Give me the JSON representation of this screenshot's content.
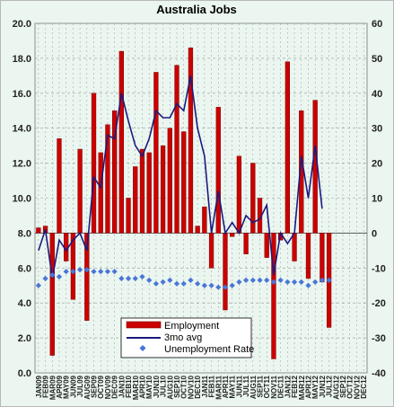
{
  "chart_data": {
    "type": "bar",
    "title": "Australia Jobs",
    "categories": [
      "JAN09",
      "FEB09",
      "MAR09",
      "APR09",
      "MAY09",
      "JUN09",
      "JUL09",
      "AUG09",
      "SEP09",
      "OCT09",
      "NOV09",
      "DEC09",
      "JAN10",
      "FEB10",
      "MAR10",
      "APR10",
      "MAY10",
      "JUN10",
      "JUL10",
      "AUG10",
      "SEP10",
      "OCT10",
      "NOV10",
      "DEC10",
      "JAN11",
      "FEB11",
      "MAR11",
      "APR11",
      "MAY11",
      "JUN11",
      "JUL11",
      "AUG11",
      "SEP11",
      "OCT11",
      "NOV11",
      "DEC11",
      "JAN12",
      "FEB12",
      "MAR12",
      "APR12",
      "MAY12",
      "JUN12",
      "JUL12",
      "AUG12",
      "SEP12",
      "OCT12",
      "NOV12",
      "DEC12"
    ],
    "left_axis": {
      "ylim": [
        0,
        20
      ],
      "ticks": [
        "0.0",
        "2.0",
        "4.0",
        "6.0",
        "8.0",
        "10.0",
        "12.0",
        "14.0",
        "16.0",
        "18.0",
        "20.0"
      ]
    },
    "right_axis": {
      "ylim": [
        -40,
        60
      ],
      "ticks": [
        "-40",
        "-30",
        "-20",
        "-10",
        "0",
        "10",
        "20",
        "30",
        "40",
        "50",
        "60"
      ]
    },
    "grid": true,
    "legend_position": "bottom-center",
    "colors": {
      "bar": "#cc0000",
      "bar_edge": "#7a0000",
      "line": "#1a1a80",
      "marker": "#4a76d8",
      "background": "#eaf6ef",
      "grid": "#999999"
    },
    "series": [
      {
        "name": "Employment",
        "axis": "right",
        "kind": "bar",
        "values": [
          1.5,
          2.0,
          -35,
          27,
          -8,
          -19,
          24,
          -25,
          40,
          23,
          31,
          35,
          52,
          10,
          19,
          24,
          23,
          46,
          25,
          30,
          48,
          29,
          53,
          2,
          7.5,
          -10,
          36,
          -22,
          -1,
          22,
          -6,
          20,
          10,
          -7,
          -36,
          -2,
          49,
          -8,
          35,
          -13,
          38,
          -14,
          -27,
          null,
          null,
          null,
          null,
          null
        ]
      },
      {
        "name": "3mo avg",
        "axis": "right",
        "kind": "line",
        "values": [
          -5,
          1,
          -13,
          -2,
          -5,
          -2,
          0,
          -5,
          16,
          13,
          28,
          27,
          40,
          32,
          25,
          22,
          27,
          35,
          33,
          33,
          37,
          35,
          45,
          30,
          22,
          0,
          12,
          0,
          3,
          0,
          5,
          3,
          4,
          8,
          -12,
          0,
          -3,
          0,
          22,
          10,
          25,
          7,
          null,
          null,
          null,
          null,
          null,
          null
        ]
      },
      {
        "name": "Unemployment Rate",
        "axis": "left",
        "kind": "scatter",
        "values": [
          5.0,
          5.4,
          5.6,
          5.5,
          5.8,
          5.8,
          5.9,
          5.9,
          5.8,
          5.8,
          5.8,
          5.8,
          5.4,
          5.4,
          5.4,
          5.5,
          5.3,
          5.1,
          5.2,
          5.3,
          5.1,
          5.1,
          5.3,
          5.1,
          5.0,
          5.0,
          4.9,
          4.9,
          5.0,
          5.2,
          5.3,
          5.3,
          5.3,
          5.3,
          5.2,
          5.3,
          5.2,
          5.2,
          5.2,
          5.0,
          5.2,
          5.3,
          5.3,
          null,
          null,
          null,
          null,
          null
        ]
      }
    ]
  }
}
